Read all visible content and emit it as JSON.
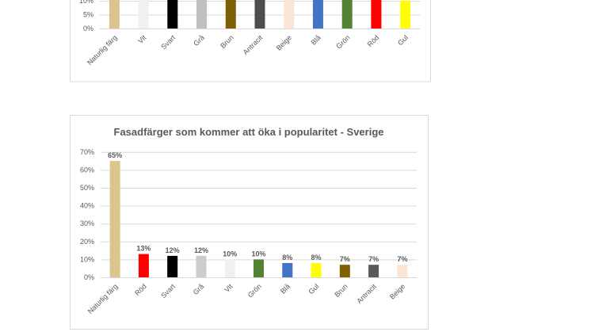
{
  "chart_data": [
    {
      "type": "bar",
      "title": "",
      "categories": [
        "Naturlig färg",
        "Vit",
        "Svart",
        "Grå",
        "Brun",
        "Antracit",
        "Beige",
        "Blå",
        "Grön",
        "Röd",
        "Gul"
      ],
      "values": [
        12,
        12,
        12,
        12,
        12,
        12,
        12,
        12,
        12,
        12,
        10
      ],
      "colors": [
        "#dcc48e",
        "#f0f0f0",
        "#000000",
        "#c0c0c0",
        "#7f6000",
        "#4d4d4d",
        "#fbe5d6",
        "#4472c4",
        "#548235",
        "#ff0000",
        "#ffff00"
      ],
      "yticks": [
        "0%",
        "5%",
        "10%"
      ],
      "ytick_values": [
        0,
        5,
        10
      ],
      "xlabel": "",
      "ylabel": ""
    },
    {
      "type": "bar",
      "title": "Fasadfärger som kommer att öka i popularitet - Sverige",
      "categories": [
        "Naturlig färg",
        "Röd",
        "Svart",
        "Grå",
        "Vit",
        "Grön",
        "Blå",
        "Gul",
        "Brun",
        "Antracit",
        "Beige"
      ],
      "values": [
        65,
        13,
        12,
        12,
        10,
        10,
        8,
        8,
        7,
        7,
        7
      ],
      "data_labels": [
        "65%",
        "13%",
        "12%",
        "12%",
        "10%",
        "10%",
        "8%",
        "8%",
        "7%",
        "7%",
        "7%"
      ],
      "colors": [
        "#dcc48e",
        "#ff0000",
        "#000000",
        "#cccccc",
        "#f0f0f0",
        "#548235",
        "#4472c4",
        "#ffff00",
        "#7f6000",
        "#595959",
        "#fbe5d6"
      ],
      "yticks": [
        "0%",
        "10%",
        "20%",
        "30%",
        "40%",
        "50%",
        "60%",
        "70%"
      ],
      "ytick_values": [
        0,
        10,
        20,
        30,
        40,
        50,
        60,
        70
      ],
      "ylim": [
        0,
        70
      ],
      "xlabel": "",
      "ylabel": "",
      "grid": true
    }
  ]
}
